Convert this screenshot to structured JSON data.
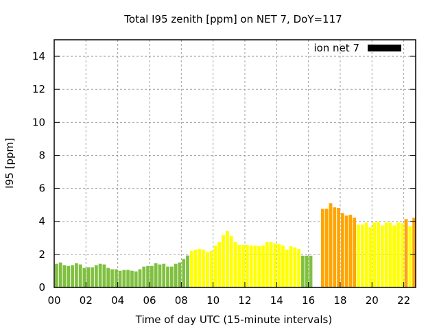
{
  "chart_data": {
    "type": "bar",
    "title": "Total I95 zenith [ppm] on NET 7, DoY=117",
    "xlabel": "Time of day UTC (15-minute intervals)",
    "ylabel": "I95 [ppm]",
    "xlim": [
      0,
      22.75
    ],
    "ylim": [
      0,
      15
    ],
    "grid": true,
    "legend": {
      "label": "ion net 7",
      "placement": "top-right",
      "color": "#000000"
    },
    "x_ticks": [
      "00",
      "02",
      "04",
      "06",
      "08",
      "10",
      "12",
      "14",
      "16",
      "18",
      "20",
      "22"
    ],
    "y_ticks": [
      "0",
      "2",
      "4",
      "6",
      "8",
      "10",
      "12",
      "14"
    ],
    "interval_hours": 0.25,
    "color_thresholds": {
      "low_max": 2,
      "mid_max": 4,
      "low_color": "#80c040",
      "mid_color": "#ffff00",
      "high_color": "#ffa500"
    },
    "values": [
      1.43,
      1.51,
      1.35,
      1.3,
      1.35,
      1.47,
      1.39,
      1.18,
      1.22,
      1.22,
      1.35,
      1.43,
      1.39,
      1.18,
      1.1,
      1.1,
      1.01,
      1.06,
      1.06,
      1.01,
      0.97,
      1.1,
      1.26,
      1.3,
      1.3,
      1.47,
      1.39,
      1.43,
      1.26,
      1.26,
      1.43,
      1.51,
      1.72,
      1.93,
      2.21,
      2.29,
      2.33,
      2.29,
      2.13,
      2.21,
      2.54,
      2.75,
      3.17,
      3.42,
      3.13,
      2.75,
      2.58,
      2.58,
      2.58,
      2.54,
      2.54,
      2.5,
      2.54,
      2.75,
      2.75,
      2.67,
      2.63,
      2.54,
      2.29,
      2.5,
      2.42,
      2.33,
      1.92,
      1.92,
      1.92,
      null,
      null,
      4.76,
      4.76,
      5.1,
      4.85,
      4.82,
      4.5,
      4.35,
      4.4,
      4.22,
      3.8,
      3.8,
      3.93,
      3.64,
      3.93,
      3.97,
      3.76,
      3.93,
      3.93,
      3.76,
      3.93,
      3.89,
      4.14,
      3.72,
      4.22
    ]
  }
}
